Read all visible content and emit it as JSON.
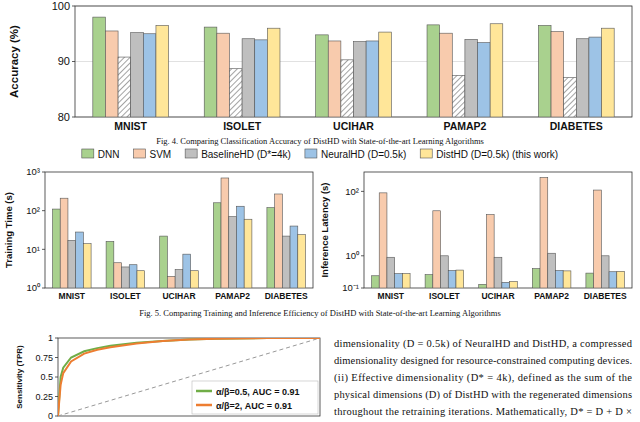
{
  "chart_data": [
    {
      "type": "bar",
      "y_label": "Accuracy (%)",
      "categories": [
        "MNIST",
        "ISOLET",
        "UCIHAR",
        "PAMAP2",
        "DIABETES"
      ],
      "series": [
        {
          "color": "#a9d18e",
          "values": [
            98,
            96.2,
            94.8,
            96.6,
            96.5
          ]
        },
        {
          "color": "#f8cbad",
          "values": [
            95.5,
            95.1,
            93.7,
            95.1,
            95.4
          ]
        },
        {
          "color": "#8c8c8c",
          "line_style": "hatched",
          "values": [
            90.8,
            88.7,
            90.3,
            87.5,
            87.1
          ]
        },
        {
          "color": "#bfbfbf",
          "values": [
            95.2,
            94.1,
            93.6,
            94,
            94.1
          ]
        },
        {
          "color": "#9dc3e6",
          "values": [
            95,
            93.9,
            93.7,
            93.4,
            94.4
          ]
        },
        {
          "color": "#ffe699",
          "values": [
            96.5,
            96,
            95.3,
            96.8,
            96
          ]
        }
      ],
      "ylim": [
        80,
        100
      ],
      "yticks": [
        80,
        90,
        100
      ],
      "grid": true
    },
    {
      "type": "bar",
      "y_label": "Training Time (s)",
      "log": "y",
      "legend": "top",
      "categories": [
        "MNIST",
        "ISOLET",
        "UCIHAR",
        "PAMAP2",
        "DIABETES"
      ],
      "series": [
        {
          "name": "DNN",
          "color": "#a9d18e",
          "values": [
            110,
            16,
            22,
            160,
            120
          ]
        },
        {
          "name": "SVM",
          "color": "#f8cbad",
          "values": [
            210,
            4.5,
            2,
            700,
            270
          ]
        },
        {
          "name": "BaselineHD (D*=4k)",
          "color": "#bfbfbf",
          "values": [
            17,
            3.5,
            3,
            70,
            22
          ]
        },
        {
          "name": "NeuralHD (D=0.5k)",
          "color": "#9dc3e6",
          "values": [
            28,
            4,
            7.5,
            130,
            40
          ]
        },
        {
          "name": "DistHD (D=0.5k) (this work)",
          "color": "#ffe699",
          "values": [
            14,
            2.8,
            2.8,
            60,
            24
          ]
        }
      ],
      "ylim": [
        1,
        1000
      ],
      "yticks": [
        {
          "value": 1,
          "label": "10⁰"
        },
        {
          "value": 10,
          "label": "10¹"
        },
        {
          "value": 100,
          "label": "10²"
        },
        {
          "value": 1000,
          "label": "10³"
        }
      ],
      "grid": false
    },
    {
      "type": "bar",
      "y_label": "Inference Latency (s)",
      "log": "y",
      "categories": [
        "MNIST",
        "ISOLET",
        "UCIHAR",
        "PAMAP2",
        "DIABETES"
      ],
      "series": [
        {
          "color": "#a9d18e",
          "values": [
            0.24,
            0.26,
            0.13,
            0.4,
            0.29
          ]
        },
        {
          "color": "#f8cbad",
          "values": [
            90,
            25,
            19,
            270,
            110
          ]
        },
        {
          "color": "#bfbfbf",
          "values": [
            0.9,
            1,
            0.9,
            1.2,
            1
          ]
        },
        {
          "color": "#9dc3e6",
          "values": [
            0.28,
            0.35,
            0.15,
            0.35,
            0.32
          ]
        },
        {
          "color": "#ffe699",
          "values": [
            0.28,
            0.36,
            0.16,
            0.34,
            0.33
          ]
        }
      ],
      "ylim": [
        0.1,
        400
      ],
      "yticks": [
        {
          "value": 0.1,
          "label": "10⁻¹"
        },
        {
          "value": 1,
          "label": "10⁰"
        },
        {
          "value": 100,
          "label": "10²"
        }
      ],
      "grid": false
    },
    {
      "type": "line",
      "y_label": "Sensitivity (TPR)",
      "tick_labels": "y",
      "legend": "lower right",
      "x": [
        0,
        0.01,
        0.02,
        0.05,
        0.1,
        0.15,
        0.2,
        0.3,
        0.4,
        0.5,
        0.6,
        0.8,
        1
      ],
      "series": [
        {
          "name": "α/β=0.5, AUC = 0.91",
          "color": "#70ad47",
          "values": [
            0,
            0.5,
            0.62,
            0.75,
            0.83,
            0.87,
            0.9,
            0.94,
            0.96,
            0.98,
            0.99,
            1,
            1
          ]
        },
        {
          "name": "α/β=2, AUC = 0.91",
          "color": "#ed7d31",
          "values": [
            0,
            0.4,
            0.55,
            0.7,
            0.8,
            0.85,
            0.88,
            0.93,
            0.96,
            0.98,
            0.99,
            1,
            1
          ]
        }
      ],
      "xlim": [
        0,
        1
      ],
      "ylim": [
        0,
        1
      ],
      "yticks": [
        0,
        0.25,
        0.5,
        0.75,
        1
      ],
      "grid": false
    }
  ],
  "captions": [
    "Fig. 4.  Comparing Classification Accuracy of DistHD with State-of-the-art Learning Algorithms",
    "Fig. 5.  Comparing Training and Inference Efficiency of DistHD with State-of-the-art Learning Algorithms"
  ],
  "text": [
    "dimensionality (D = 0.5k) of NeuralHD and DistHD, a compressed",
    "dimensionality designed for resource-constrained computing devices.",
    "(ii) Effective dimensionality (D* = 4k), defined as the sum of the",
    "physical dimensions (D) of DistHD with the regenerated dimensions",
    "throughout the retraining iterations. Mathematically, D* = D + D ×"
  ]
}
